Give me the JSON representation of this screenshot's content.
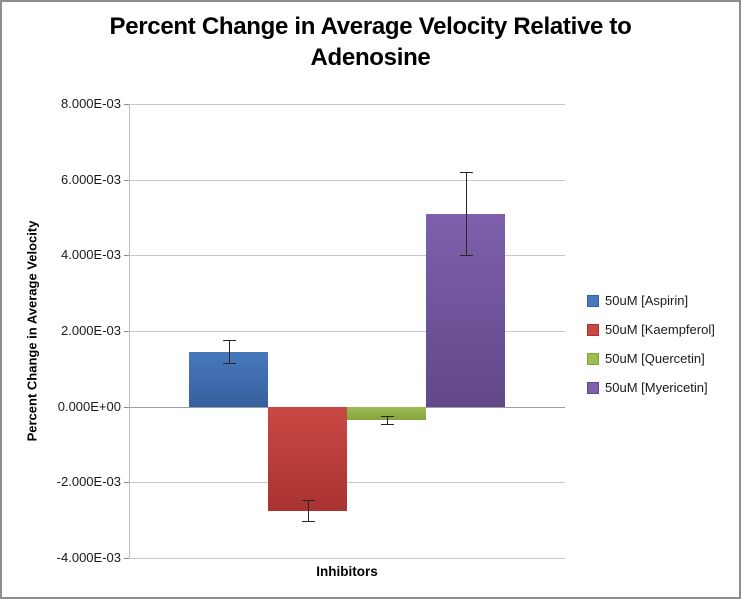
{
  "figure": {
    "background": "#ffffff",
    "border_color": "#8e8e8e"
  },
  "chart_data": {
    "type": "bar",
    "title": "Percent Change in Average Velocity Relative to Adenosine",
    "xlabel": "Inhibitors",
    "ylabel": "Percent Change in Average Velocity",
    "ylim": [
      -0.004,
      0.008
    ],
    "grid": true,
    "legend_position": "right",
    "y_tick_format": "scientific",
    "y_ticks": [
      {
        "value": 0.008,
        "label": "8.000E-03"
      },
      {
        "value": 0.006,
        "label": "6.000E-03"
      },
      {
        "value": 0.004,
        "label": "4.000E-03"
      },
      {
        "value": 0.002,
        "label": "2.000E-03"
      },
      {
        "value": 0.0,
        "label": "0.000E+00"
      },
      {
        "value": -0.002,
        "label": "-2.000E-03"
      },
      {
        "value": -0.004,
        "label": "-4.000E-03"
      }
    ],
    "categories": [
      "Inhibitors"
    ],
    "series": [
      {
        "name": "50uM [Aspirin]",
        "value": 0.00145,
        "error": 0.0003,
        "color": "#4878BC",
        "color_dark": "#35609E"
      },
      {
        "name": "50uM [Kaempferol]",
        "value": -0.00275,
        "error": 0.00028,
        "color": "#C94844",
        "color_dark": "#A93330"
      },
      {
        "name": "50uM [Quercetin]",
        "value": -0.00035,
        "error": 0.0001,
        "color": "#9DBD53",
        "color_dark": "#85A23C"
      },
      {
        "name": "50uM [Myericetin]",
        "value": 0.0051,
        "error": 0.0011,
        "color": "#7E60AC",
        "color_dark": "#624789"
      }
    ]
  }
}
